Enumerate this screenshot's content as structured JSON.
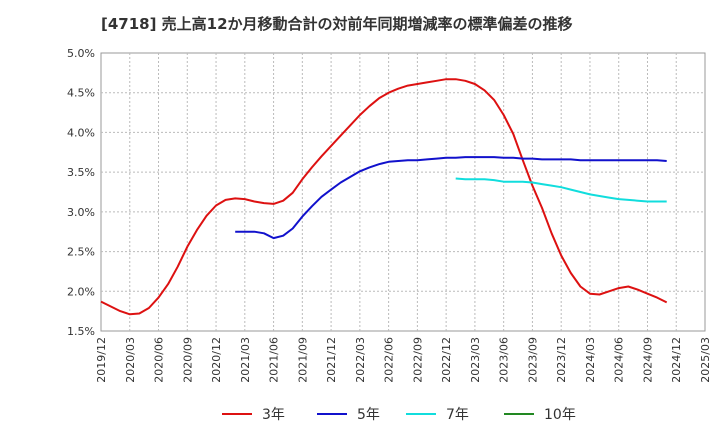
{
  "chart_data": {
    "type": "line",
    "title": "[4718]  売上高12か月移動合計の対前年同期増減率の標準偏差の推移",
    "xlabel": "",
    "ylabel": "",
    "ylim": [
      0.015,
      0.05
    ],
    "yticks": [
      "5.0%",
      "4.5%",
      "4.0%",
      "3.5%",
      "3.0%",
      "2.5%",
      "2.0%",
      "1.5%"
    ],
    "yticks_values": [
      0.05,
      0.045,
      0.04,
      0.035,
      0.03,
      0.025,
      0.02,
      0.015
    ],
    "xticks": [
      "2019/12",
      "2020/03",
      "2020/06",
      "2020/09",
      "2020/12",
      "2021/03",
      "2021/06",
      "2021/09",
      "2021/12",
      "2022/03",
      "2022/06",
      "2022/09",
      "2022/12",
      "2023/03",
      "2023/06",
      "2023/09",
      "2023/12",
      "2024/03",
      "2024/06",
      "2024/09",
      "2024/12",
      "2025/03"
    ],
    "grid": true,
    "legend_position": "bottom",
    "series": [
      {
        "name": "3年",
        "color": "#dd1111",
        "start": "2019/12",
        "values": [
          0.0187,
          0.0181,
          0.0175,
          0.0171,
          0.0172,
          0.0179,
          0.0192,
          0.0209,
          0.0231,
          0.0256,
          0.0277,
          0.0295,
          0.0308,
          0.0315,
          0.0317,
          0.0316,
          0.0313,
          0.0311,
          0.031,
          0.0314,
          0.0324,
          0.0341,
          0.0356,
          0.037,
          0.0383,
          0.0396,
          0.0409,
          0.0422,
          0.0433,
          0.0443,
          0.045,
          0.0455,
          0.0459,
          0.0461,
          0.0463,
          0.0465,
          0.0467,
          0.0467,
          0.0465,
          0.0461,
          0.0453,
          0.0441,
          0.0422,
          0.0398,
          0.0365,
          0.0333,
          0.0305,
          0.0273,
          0.0245,
          0.0223,
          0.0206,
          0.0197,
          0.0196,
          0.02,
          0.0204,
          0.0206,
          0.0202,
          0.0197,
          0.0192,
          0.0186
        ]
      },
      {
        "name": "5年",
        "color": "#1111cc",
        "start": "2019/12",
        "values": [
          null,
          null,
          null,
          null,
          null,
          null,
          null,
          null,
          null,
          null,
          null,
          null,
          null,
          null,
          0.0275,
          0.0275,
          0.0275,
          0.0273,
          0.0267,
          0.027,
          0.0279,
          0.0294,
          0.0307,
          0.0319,
          0.0328,
          0.0337,
          0.0344,
          0.0351,
          0.0356,
          0.036,
          0.0363,
          0.0364,
          0.0365,
          0.0365,
          0.0366,
          0.0367,
          0.0368,
          0.0368,
          0.0369,
          0.0369,
          0.0369,
          0.0369,
          0.0368,
          0.0368,
          0.0367,
          0.0367,
          0.0366,
          0.0366,
          0.0366,
          0.0366,
          0.0365,
          0.0365,
          0.0365,
          0.0365,
          0.0365,
          0.0365,
          0.0365,
          0.0365,
          0.0365,
          0.0364
        ]
      },
      {
        "name": "7年",
        "color": "#11dddd",
        "start": "2019/12",
        "values": [
          null,
          null,
          null,
          null,
          null,
          null,
          null,
          null,
          null,
          null,
          null,
          null,
          null,
          null,
          null,
          null,
          null,
          null,
          null,
          null,
          null,
          null,
          null,
          null,
          null,
          null,
          null,
          null,
          null,
          null,
          null,
          null,
          null,
          null,
          null,
          null,
          null,
          0.0342,
          0.0341,
          0.0341,
          0.0341,
          0.034,
          0.0338,
          0.0338,
          0.0338,
          0.0337,
          0.0335,
          0.0333,
          0.0331,
          0.0328,
          0.0325,
          0.0322,
          0.032,
          0.0318,
          0.0316,
          0.0315,
          0.0314,
          0.0313,
          0.0313,
          0.0313
        ]
      },
      {
        "name": "10年",
        "color": "#228822",
        "start": "2019/12",
        "values": []
      }
    ]
  }
}
